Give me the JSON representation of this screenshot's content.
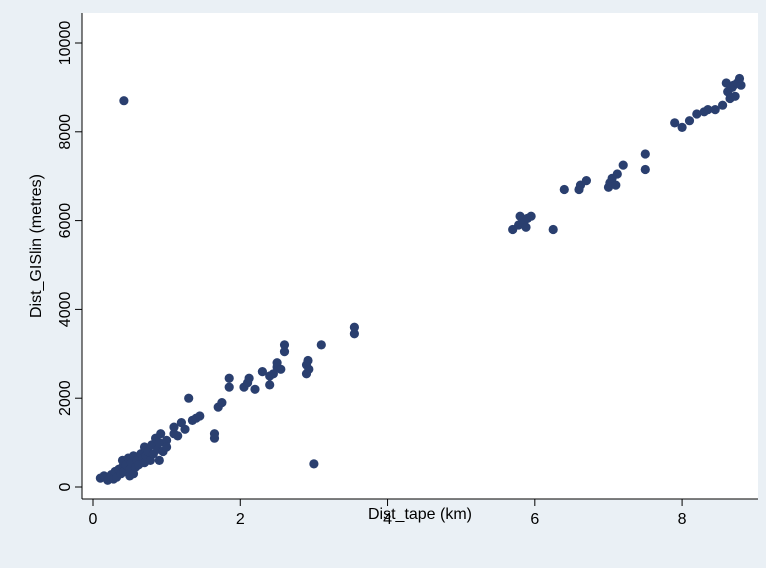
{
  "chart_data": {
    "type": "scatter",
    "title": "",
    "xlabel": "Dist_tape (km)",
    "ylabel": "Dist_GISlin (metres)",
    "xlim": [
      0,
      8.8
    ],
    "ylim": [
      0,
      10000
    ],
    "xticks": [
      0,
      2,
      4,
      6,
      8
    ],
    "yticks": [
      0,
      2000,
      4000,
      6000,
      8000,
      10000
    ],
    "grid": false,
    "legend": "none",
    "colors": {
      "point": "#2a3f6f",
      "plot_bg": "#ffffff",
      "figure_bg": "#eaf0f5"
    },
    "series": [
      {
        "points": [
          [
            0.1,
            200
          ],
          [
            0.15,
            250
          ],
          [
            0.2,
            150
          ],
          [
            0.25,
            280
          ],
          [
            0.28,
            180
          ],
          [
            0.3,
            350
          ],
          [
            0.32,
            220
          ],
          [
            0.35,
            400
          ],
          [
            0.38,
            300
          ],
          [
            0.4,
            450
          ],
          [
            0.4,
            600
          ],
          [
            0.42,
            350
          ],
          [
            0.45,
            500
          ],
          [
            0.48,
            650
          ],
          [
            0.5,
            250
          ],
          [
            0.5,
            400
          ],
          [
            0.52,
            550
          ],
          [
            0.55,
            300
          ],
          [
            0.55,
            700
          ],
          [
            0.58,
            450
          ],
          [
            0.6,
            600
          ],
          [
            0.62,
            500
          ],
          [
            0.65,
            750
          ],
          [
            0.68,
            650
          ],
          [
            0.7,
            550
          ],
          [
            0.7,
            900
          ],
          [
            0.72,
            700
          ],
          [
            0.75,
            800
          ],
          [
            0.78,
            600
          ],
          [
            0.8,
            950
          ],
          [
            0.82,
            750
          ],
          [
            0.85,
            1100
          ],
          [
            0.88,
            850
          ],
          [
            0.9,
            1000
          ],
          [
            0.9,
            600
          ],
          [
            0.92,
            1200
          ],
          [
            0.95,
            800
          ],
          [
            1.0,
            1050
          ],
          [
            1.0,
            900
          ],
          [
            1.1,
            1200
          ],
          [
            1.1,
            1350
          ],
          [
            1.15,
            1150
          ],
          [
            1.2,
            1450
          ],
          [
            1.25,
            1300
          ],
          [
            1.3,
            2000
          ],
          [
            1.35,
            1500
          ],
          [
            1.4,
            1550
          ],
          [
            1.45,
            1600
          ],
          [
            1.65,
            1100
          ],
          [
            1.65,
            1200
          ],
          [
            1.7,
            1800
          ],
          [
            1.75,
            1900
          ],
          [
            1.85,
            2450
          ],
          [
            1.85,
            2250
          ],
          [
            2.05,
            2250
          ],
          [
            2.1,
            2350
          ],
          [
            2.12,
            2450
          ],
          [
            2.2,
            2200
          ],
          [
            2.3,
            2600
          ],
          [
            2.4,
            2300
          ],
          [
            2.4,
            2500
          ],
          [
            2.45,
            2550
          ],
          [
            2.5,
            2700
          ],
          [
            2.5,
            2800
          ],
          [
            2.55,
            2650
          ],
          [
            2.6,
            3050
          ],
          [
            2.6,
            3200
          ],
          [
            2.9,
            2550
          ],
          [
            2.9,
            2750
          ],
          [
            2.92,
            2850
          ],
          [
            2.93,
            2650
          ],
          [
            3.0,
            520
          ],
          [
            3.1,
            3200
          ],
          [
            3.55,
            3450
          ],
          [
            3.55,
            3600
          ],
          [
            0.42,
            8700
          ],
          [
            5.7,
            5800
          ],
          [
            5.78,
            5900
          ],
          [
            5.8,
            6100
          ],
          [
            5.85,
            5950
          ],
          [
            5.88,
            5850
          ],
          [
            5.9,
            6050
          ],
          [
            5.95,
            6100
          ],
          [
            6.25,
            5800
          ],
          [
            6.4,
            6700
          ],
          [
            6.6,
            6700
          ],
          [
            6.62,
            6800
          ],
          [
            6.7,
            6900
          ],
          [
            7.0,
            6750
          ],
          [
            7.02,
            6850
          ],
          [
            7.05,
            6950
          ],
          [
            7.1,
            6800
          ],
          [
            7.12,
            7050
          ],
          [
            7.2,
            7250
          ],
          [
            7.5,
            7150
          ],
          [
            7.5,
            7500
          ],
          [
            7.9,
            8200
          ],
          [
            8.0,
            8100
          ],
          [
            8.1,
            8250
          ],
          [
            8.2,
            8400
          ],
          [
            8.3,
            8450
          ],
          [
            8.35,
            8500
          ],
          [
            8.45,
            8500
          ],
          [
            8.55,
            8600
          ],
          [
            8.6,
            9100
          ],
          [
            8.62,
            8900
          ],
          [
            8.65,
            8750
          ],
          [
            8.68,
            9000
          ],
          [
            8.7,
            9050
          ],
          [
            8.72,
            8800
          ],
          [
            8.75,
            9100
          ],
          [
            8.78,
            9200
          ],
          [
            8.8,
            9050
          ]
        ]
      }
    ]
  }
}
